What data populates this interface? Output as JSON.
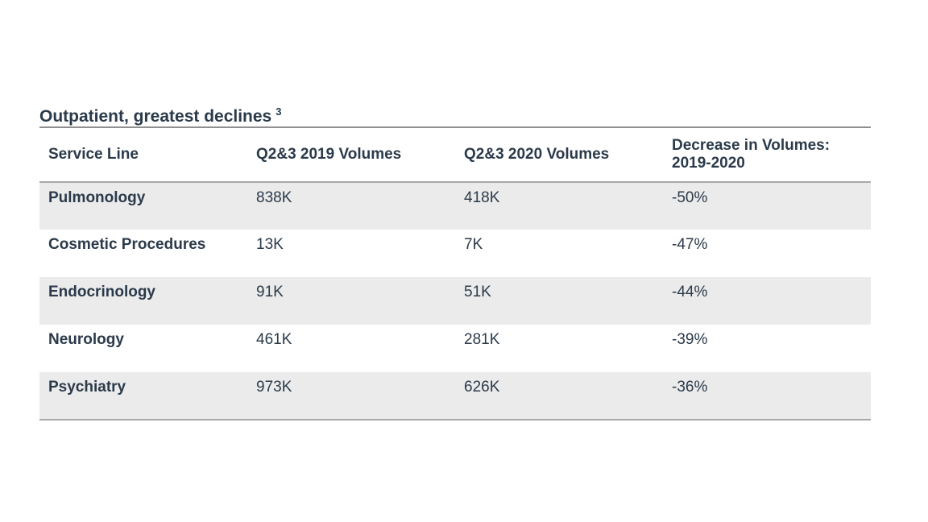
{
  "page": {
    "background_color": "#ffffff"
  },
  "chart_data": {
    "type": "table",
    "title": "Outpatient, greatest declines",
    "title_footnote_marker": "3",
    "columns": [
      "Service Line",
      "Q2&3 2019 Volumes",
      "Q2&3 2020 Volumes",
      "Decrease in Volumes: 2019-2020"
    ],
    "rows": [
      [
        "Pulmonology",
        "838K",
        "418K",
        "-50%"
      ],
      [
        "Cosmetic Procedures",
        "13K",
        "7K",
        "-47%"
      ],
      [
        "Endocrinology",
        "91K",
        "51K",
        "-44%"
      ],
      [
        "Neurology",
        "461K",
        "281K",
        "-39%"
      ],
      [
        "Psychiatry",
        "973K",
        "626K",
        "-36%"
      ]
    ],
    "layout": {
      "shaded_row_indices": [
        0,
        2,
        4
      ],
      "header_alignment": "left",
      "cell_alignment": "left"
    }
  },
  "colors": {
    "text": "#2b3a4a",
    "row_shade": "#ebebeb",
    "title_rule": "#8f8f8f",
    "table_rule": "#a8a8a8",
    "background": "#ffffff"
  }
}
